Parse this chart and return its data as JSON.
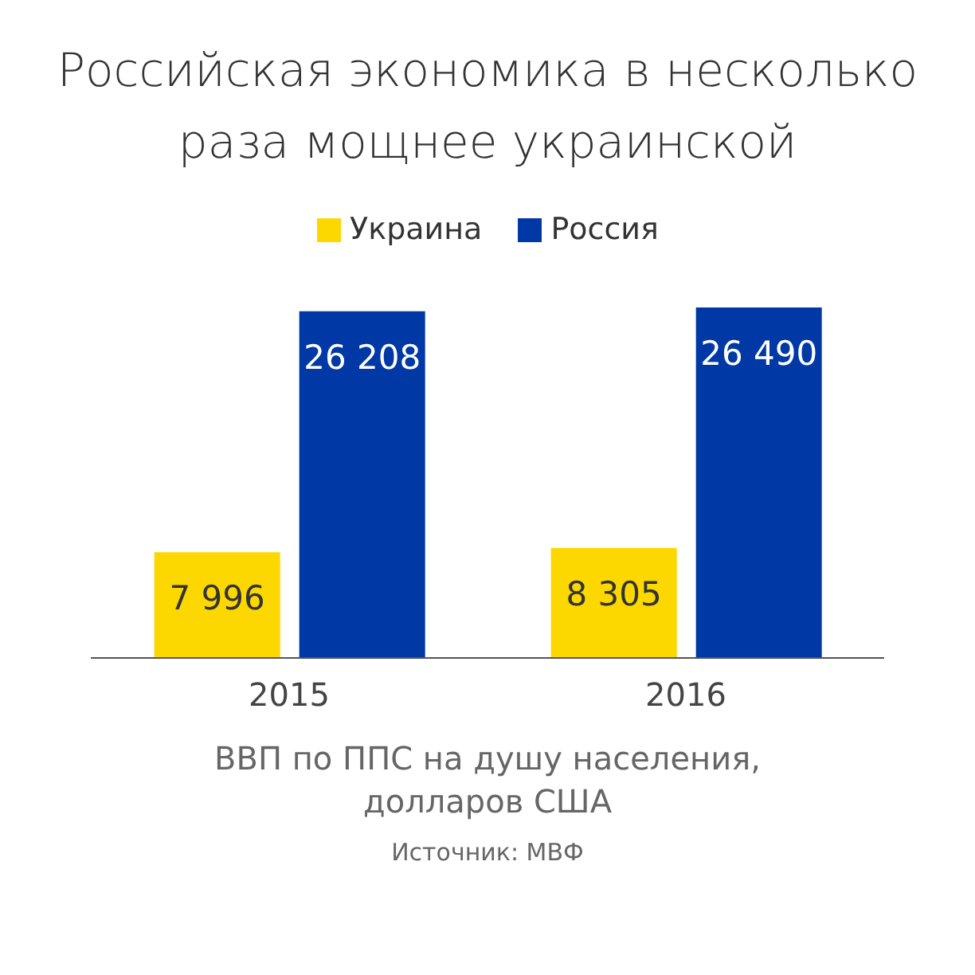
{
  "chart_data": {
    "type": "bar",
    "title": "Российская экономика в несколько раза мощнее украинской",
    "categories": [
      "2015",
      "2016"
    ],
    "series": [
      {
        "name": "Украина",
        "color": "#fdd700",
        "values": [
          7996,
          8305
        ],
        "value_labels": [
          "7 996",
          "8 305"
        ]
      },
      {
        "name": "Россия",
        "color": "#0039a6",
        "values": [
          26208,
          26490
        ],
        "value_labels": [
          "26 208",
          "26 490"
        ]
      }
    ],
    "xlabel": "ВВП по ППС на душу населения, долларов США",
    "annotations": [
      "Источник: МВФ"
    ],
    "legend": "top",
    "grid": false
  }
}
